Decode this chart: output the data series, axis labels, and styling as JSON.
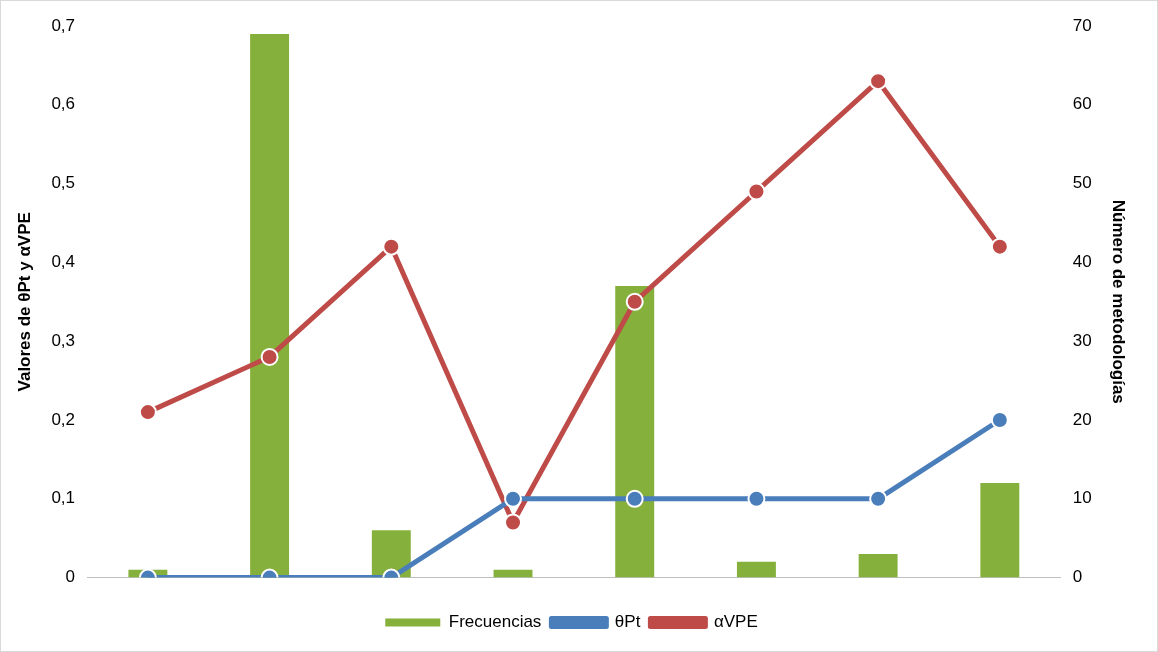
{
  "chart_data": {
    "type": "bar",
    "categories": [
      null,
      null,
      null,
      null,
      null,
      null,
      null,
      null
    ],
    "ylabel": "Valores de θPt y αVPE",
    "y2label": "Número de metodologías",
    "ylim": [
      0,
      0.7
    ],
    "yticks": [
      {
        "value": 0,
        "label": "0"
      },
      {
        "value": 0.1,
        "label": "0,1"
      },
      {
        "value": 0.2,
        "label": "0,2"
      },
      {
        "value": 0.3,
        "label": "0,3"
      },
      {
        "value": 0.4,
        "label": "0,4"
      },
      {
        "value": 0.5,
        "label": "0,5"
      },
      {
        "value": 0.6,
        "label": "0,6"
      },
      {
        "value": 0.7,
        "label": "0,7"
      }
    ],
    "y2lim": [
      0,
      70
    ],
    "y2ticks": [
      0,
      10,
      20,
      30,
      40,
      50,
      60,
      70
    ],
    "series": [
      {
        "name": "Frecuencias",
        "axis": "y2",
        "color": "#86b03c",
        "values": [
          1,
          69,
          6,
          1,
          37,
          2,
          3,
          12
        ]
      },
      {
        "name": "θPt",
        "type": "line",
        "color": "#4a7ebb",
        "values": [
          0,
          0,
          0,
          0.1,
          0.1,
          0.1,
          0.1,
          0.2
        ]
      },
      {
        "name": "αVPE",
        "type": "line",
        "color": "#be4b48",
        "values": [
          0.21,
          0.28,
          0.42,
          0.07,
          0.35,
          0.49,
          0.63,
          0.42
        ]
      }
    ],
    "marker": "circle",
    "grid": false,
    "legend": "bottom"
  }
}
